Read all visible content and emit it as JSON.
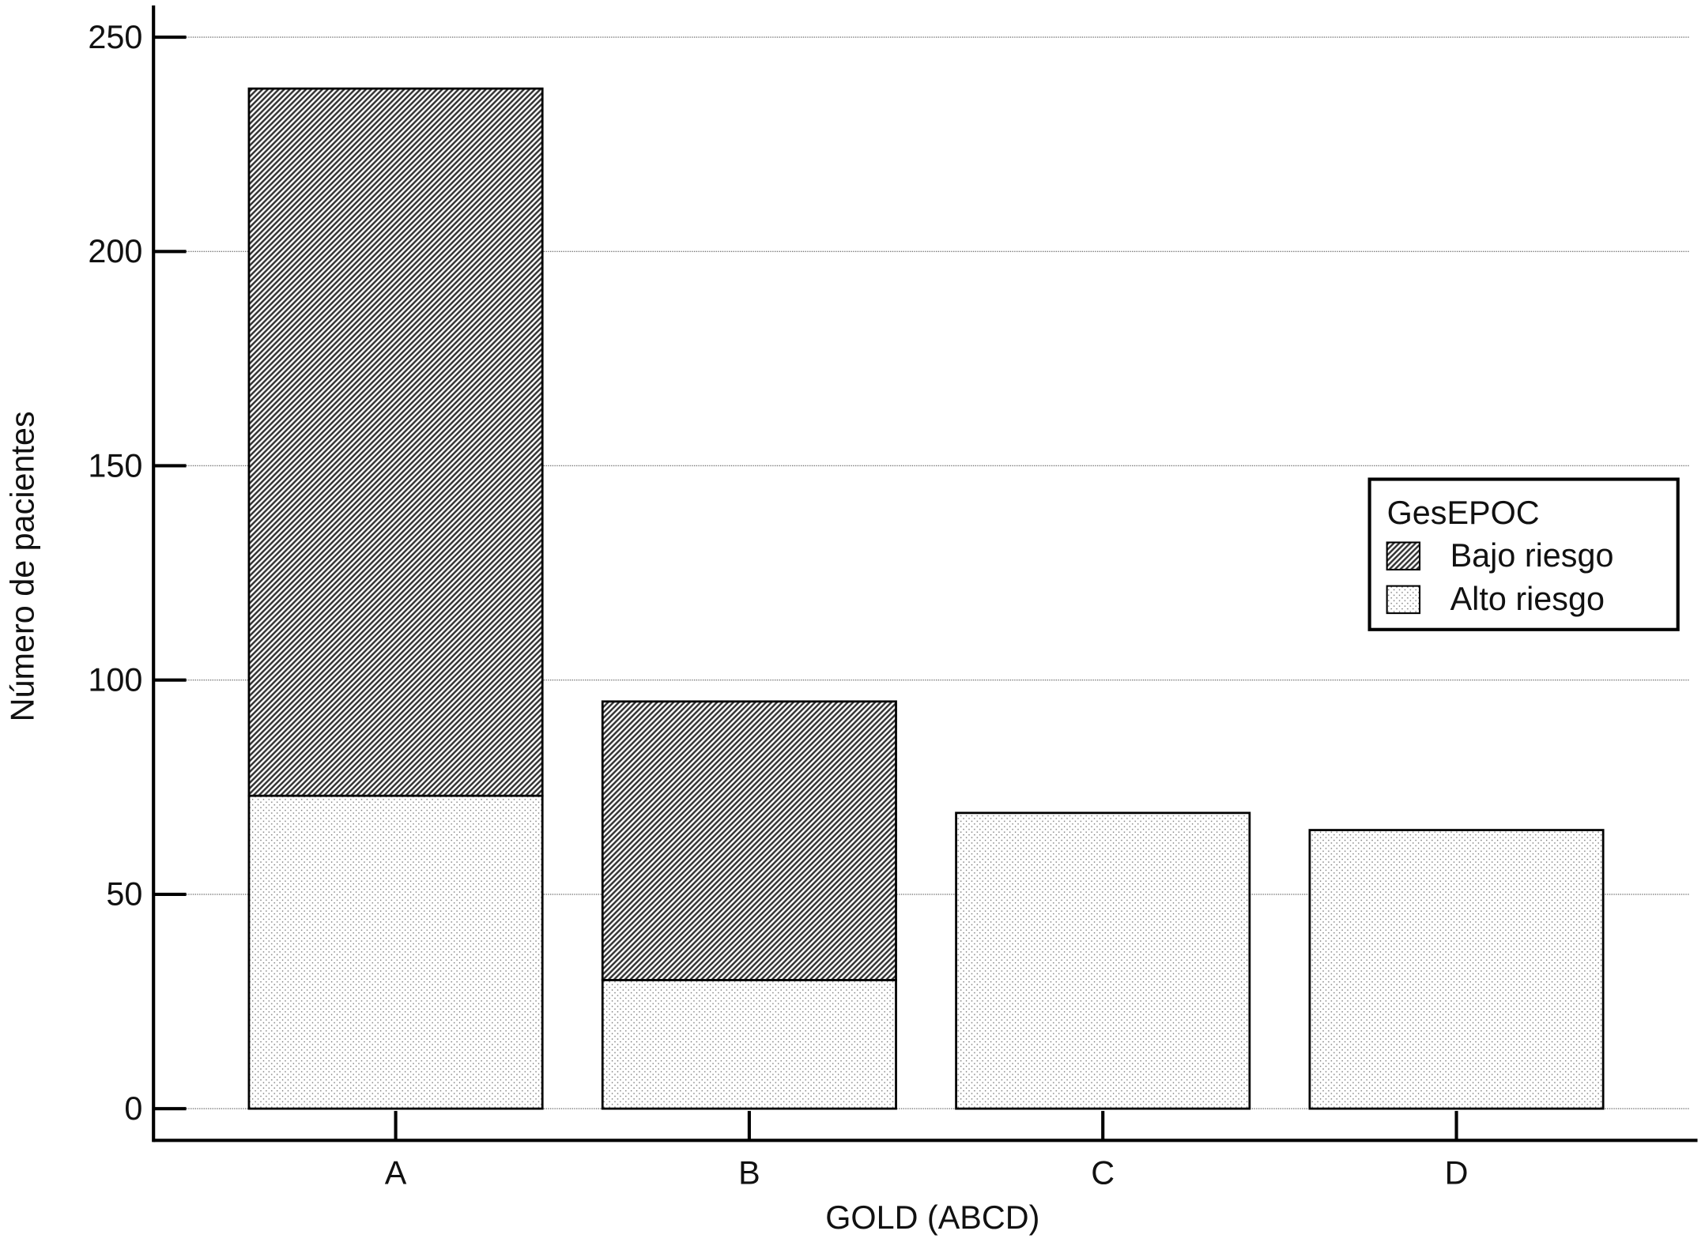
{
  "chart_data": {
    "type": "stacked_bar",
    "x_label": "GOLD (ABCD)",
    "y_label": "Número de pacientes",
    "categories": [
      "A",
      "B",
      "C",
      "D"
    ],
    "series": [
      {
        "name": "Alto riesgo",
        "color": "#6e6e6e",
        "pattern": "dots",
        "values": [
          73,
          30,
          69,
          65
        ]
      },
      {
        "name": "Bajo riesgo",
        "color": "#333333",
        "pattern": "hatch",
        "values": [
          165,
          65,
          0,
          0
        ]
      }
    ],
    "ylim": [
      -7.4,
      257.4
    ],
    "yticks": [
      0,
      50,
      100,
      150,
      200,
      250
    ],
    "grid": true,
    "legend": {
      "title": "GesEPOC",
      "position": "right",
      "order": [
        1,
        0
      ]
    }
  }
}
